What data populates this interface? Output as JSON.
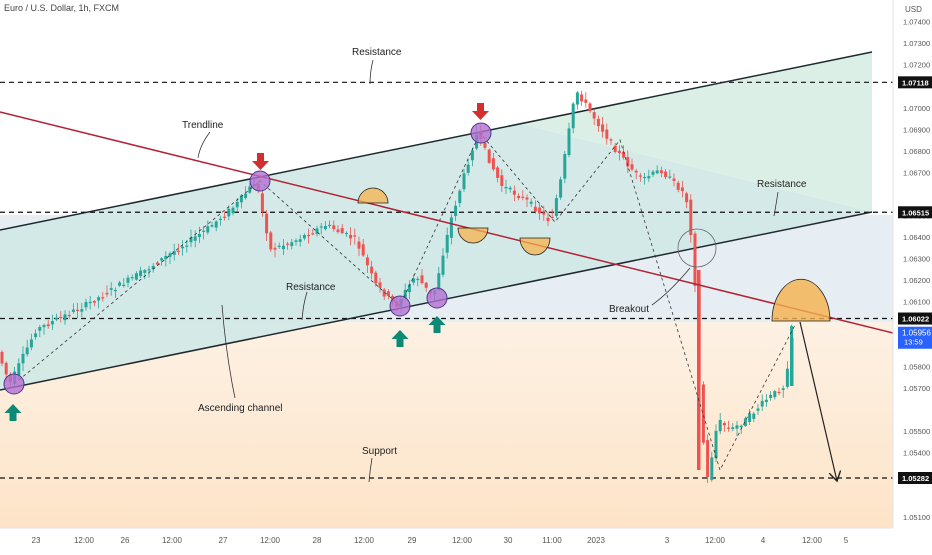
{
  "header": {
    "symbol_title": "Euro / U.S. Dollar, 1h, FXCM"
  },
  "colors": {
    "up": "#26a69a",
    "down": "#ef5350",
    "trendline": "#b22234",
    "channel": "#1f2a30",
    "channel_fill": "#d9efe4",
    "support_zone": "#fde9d3",
    "mid_zone": "#cfe2ef",
    "circle": "#b36fd1",
    "dome": "#f5b14c"
  },
  "annotations": {
    "resistance_top": "Resistance",
    "trendline": "Trendline",
    "resistance_right": "Resistance",
    "resistance_low": "Resistance",
    "breakout": "Breakout",
    "ascending_channel": "Ascending channel",
    "support": "Support"
  },
  "chart_data": {
    "type": "candlestick",
    "y_unit": "USD",
    "ylim": [
      1.0505,
      1.075
    ],
    "y_ticks": [
      "1.07400",
      "1.07300",
      "1.07200",
      "1.07000",
      "1.06900",
      "1.06800",
      "1.06700",
      "1.06500",
      "1.06400",
      "1.06300",
      "1.06200",
      "1.06100",
      "1.05800",
      "1.05700",
      "1.05500",
      "1.05400",
      "1.05100"
    ],
    "x_ticks": [
      "23",
      "12:00",
      "26",
      "12:00",
      "27",
      "12:00",
      "28",
      "12:00",
      "29",
      "12:00",
      "30",
      "11:00",
      "2023",
      "3",
      "12:00",
      "4",
      "12:00",
      "5"
    ],
    "price_labels": [
      {
        "label": "1.07118",
        "value": 1.07118
      },
      {
        "label": "1.06515",
        "value": 1.06515
      },
      {
        "label": "1.06022",
        "value": 1.06022
      },
      {
        "label": "1.05282",
        "value": 1.05282
      }
    ],
    "current_price": {
      "price": "1.05956",
      "countdown": "13:59",
      "value": 1.05956
    },
    "horizontal_levels": [
      1.07118,
      1.06515,
      1.06022,
      1.05282
    ]
  }
}
